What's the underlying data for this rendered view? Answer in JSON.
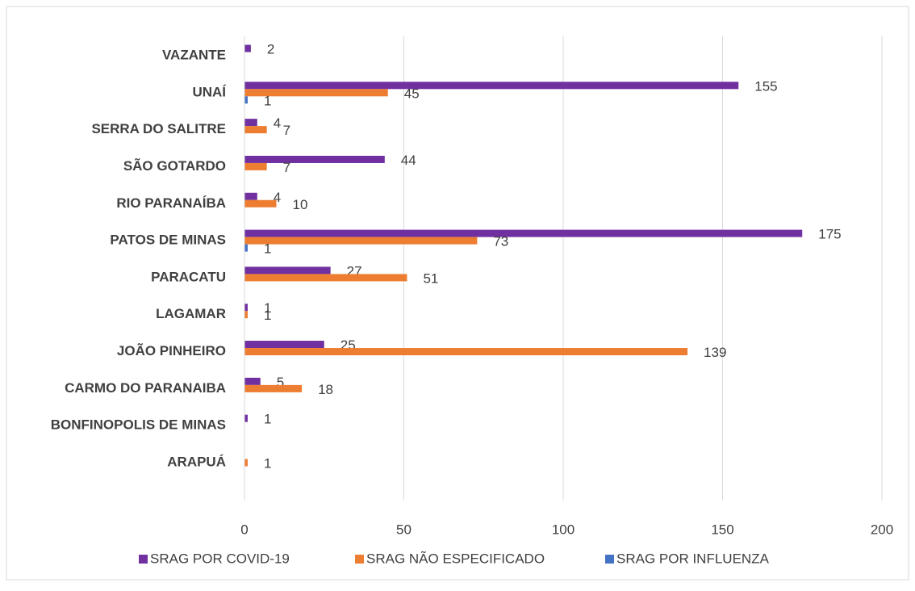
{
  "chart_data": {
    "type": "bar",
    "orientation": "horizontal",
    "categories": [
      "ARAPUÁ",
      "BONFINOPOLIS DE MINAS",
      "CARMO DO PARANAIBA",
      "JOÃO PINHEIRO",
      "LAGAMAR",
      "PARACATU",
      "PATOS DE MINAS",
      "RIO PARANAÍBA",
      "SÃO GOTARDO",
      "SERRA DO SALITRE",
      "UNAÍ",
      "VAZANTE"
    ],
    "series": [
      {
        "name": "SRAG POR COVID-19",
        "color": "#7030a0",
        "values": [
          null,
          1,
          5,
          25,
          1,
          27,
          175,
          4,
          44,
          4,
          155,
          2
        ]
      },
      {
        "name": "SRAG NÃO ESPECIFICADO",
        "color": "#ed7d31",
        "values": [
          1,
          null,
          18,
          139,
          1,
          51,
          73,
          10,
          7,
          7,
          45,
          null
        ]
      },
      {
        "name": "SRAG POR INFLUENZA",
        "color": "#4472c4",
        "values": [
          null,
          null,
          null,
          null,
          null,
          null,
          1,
          null,
          null,
          null,
          1,
          null
        ]
      }
    ],
    "xlim": [
      0,
      200
    ],
    "xticks": [
      0,
      50,
      100,
      150,
      200
    ],
    "grid": true,
    "legend": "bottom"
  }
}
